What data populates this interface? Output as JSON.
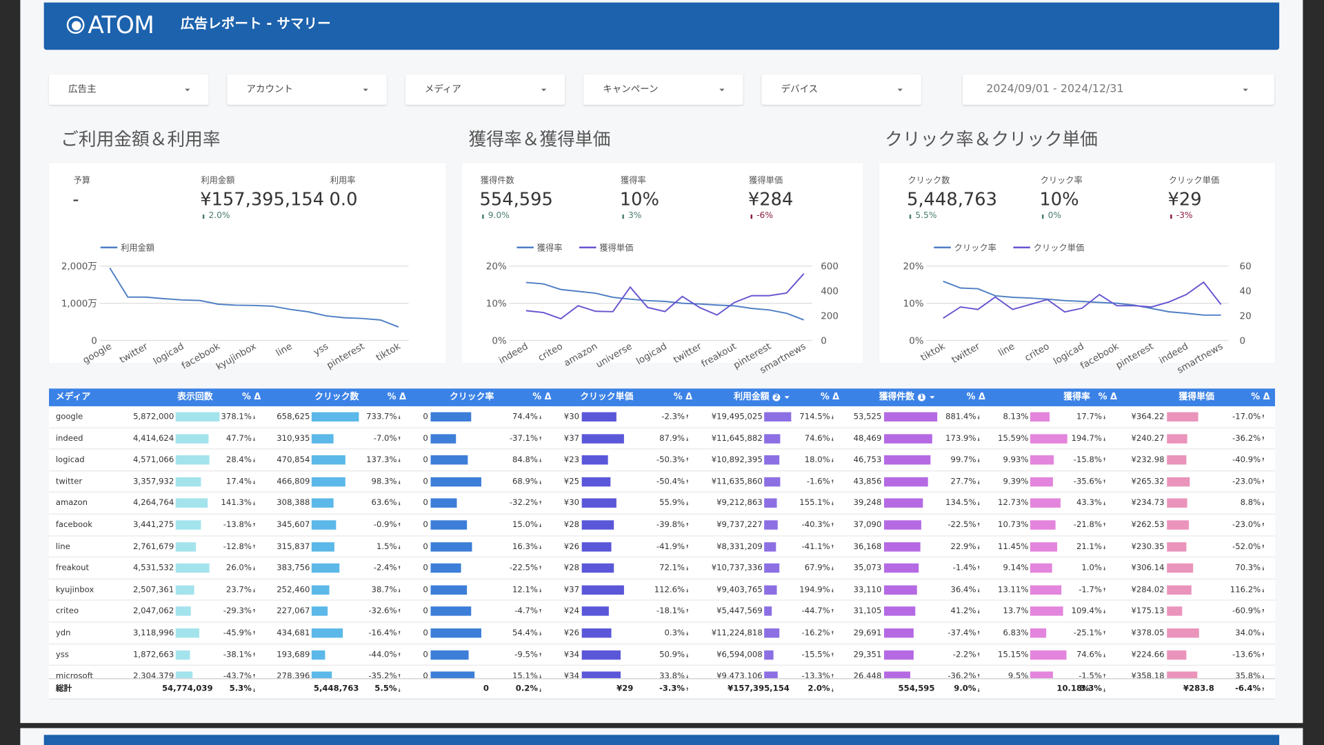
{
  "header": {
    "logo": "ATOM",
    "title": "広告レポート - サマリー"
  },
  "filters": [
    "広告主",
    "アカウント",
    "メディア",
    "キャンペーン",
    "デバイス"
  ],
  "date_range": "2024/09/01 - 2024/12/31",
  "panels": [
    {
      "title": "ご利用金額＆利用率",
      "kpis": [
        {
          "label": "予算",
          "value": "-"
        },
        {
          "label": "利用金額",
          "value": "¥157,395,154",
          "delta": "2.0%"
        },
        {
          "label": "利用率",
          "value": "0.0"
        }
      ]
    },
    {
      "title": "獲得率＆獲得単価",
      "kpis": [
        {
          "label": "獲得件数",
          "value": "554,595",
          "delta": "9.0%"
        },
        {
          "label": "獲得率",
          "value": "10%",
          "delta": "3%"
        },
        {
          "label": "獲得単価",
          "value": "¥284",
          "delta": "-6%"
        }
      ]
    },
    {
      "title": "クリック率＆クリック単価",
      "kpis": [
        {
          "label": "クリック数",
          "value": "5,448,763",
          "delta": "5.5%"
        },
        {
          "label": "クリック率",
          "value": "10%",
          "delta": "0%"
        },
        {
          "label": "クリック単価",
          "value": "¥29",
          "delta": "-3%"
        }
      ]
    }
  ],
  "chart_data": [
    {
      "type": "line",
      "categories": [
        "google",
        null,
        "twitter",
        null,
        "logicad",
        null,
        "facebook",
        null,
        "kyujinbox",
        null,
        "line",
        null,
        "yss",
        null,
        "pinterest",
        null,
        "tiktok"
      ],
      "series": [
        {
          "name": "利用金額",
          "color": "#4f7fc4",
          "values": [
            19500000,
            11650000,
            11640000,
            11220000,
            10890000,
            10740000,
            9740000,
            9470000,
            9400000,
            9210000,
            8330000,
            7700000,
            6590000,
            6100000,
            5900000,
            5500000,
            3600000
          ]
        }
      ],
      "ylim": [
        0,
        20000000
      ],
      "yticks": [
        0,
        {
          "value": 10000000,
          "label": "1,000万"
        },
        {
          "value": 20000000,
          "label": "2,000万"
        }
      ],
      "grid": true,
      "legend": "top-left"
    },
    {
      "type": "line",
      "categories": [
        "indeed",
        null,
        "criteo",
        null,
        "amazon",
        null,
        "universe",
        null,
        "logicad",
        null,
        "twitter",
        null,
        "freakout",
        null,
        "pinterest",
        null,
        "smartnews"
      ],
      "series": [
        {
          "name": "獲得率",
          "color": "#4f7fc4",
          "values": [
            15.6,
            15.2,
            13.7,
            13.2,
            12.7,
            11.6,
            11.1,
            10.7,
            10.5,
            10,
            9.8,
            9.5,
            9.3,
            8.6,
            8.2,
            7.3,
            5.5
          ]
        },
        {
          "name": "獲得単価",
          "color": "#6655d0",
          "axis": "y2",
          "values": [
            240,
            225,
            175,
            280,
            235,
            232,
            430,
            266,
            233,
            355,
            265,
            205,
            306,
            361,
            361,
            382,
            539
          ]
        }
      ],
      "ylim": [
        0,
        20
      ],
      "yticks": [
        {
          "value": 0,
          "label": "0%"
        },
        {
          "value": 10,
          "label": "10%"
        },
        {
          "value": 20,
          "label": "20%"
        }
      ],
      "y2lim": [
        0,
        600
      ],
      "y2ticks": [
        0,
        200,
        400,
        600
      ],
      "grid": true,
      "legend": "top-left"
    },
    {
      "type": "line",
      "categories": [
        "tiktok",
        null,
        "twitter",
        null,
        "line",
        null,
        "criteo",
        null,
        "logicad",
        null,
        "facebook",
        null,
        "pinterest",
        null,
        "indeed",
        null,
        "smartnews"
      ],
      "series": [
        {
          "name": "クリック率",
          "color": "#4f7fc4",
          "values": [
            15.9,
            14.1,
            13.9,
            12,
            11.6,
            11.4,
            11.1,
            10.7,
            10.5,
            10.2,
            10,
            9.5,
            8.6,
            7.7,
            7.3,
            6.8,
            6.8
          ]
        },
        {
          "name": "クリック単価",
          "color": "#6655d0",
          "axis": "y2",
          "values": [
            18,
            27,
            25,
            35,
            25,
            29,
            33,
            23,
            26,
            37,
            28,
            28,
            27,
            31,
            37,
            47,
            29
          ]
        }
      ],
      "ylim": [
        0,
        20
      ],
      "yticks": [
        {
          "value": 0,
          "label": "0%"
        },
        {
          "value": 10,
          "label": "10%"
        },
        {
          "value": 20,
          "label": "20%"
        }
      ],
      "y2lim": [
        0,
        60
      ],
      "y2ticks": [
        0,
        20,
        40,
        60
      ],
      "grid": true,
      "legend": "top-left"
    }
  ],
  "table": {
    "headers": [
      "メディア",
      "表示回数",
      "% Δ",
      "クリック数",
      "% Δ",
      "クリック率",
      "% Δ",
      "クリック単価",
      "% Δ",
      {
        "label": "利用金額",
        "sort": "2"
      },
      "% Δ",
      {
        "label": "獲得件数",
        "sort": "1"
      },
      "% Δ",
      "獲得率",
      "% Δ",
      "獲得単価",
      "% Δ"
    ],
    "rows": [
      [
        "google",
        "5,872,000",
        "378.1%",
        "658,625",
        "733.7%",
        "0",
        "74.4%",
        "¥30",
        "-2.3%",
        "¥19,495,025",
        "714.5%",
        "53,525",
        "881.4%",
        "8.13%",
        "17.7%",
        "¥364.22",
        "-17.0%"
      ],
      [
        "indeed",
        "4,414,624",
        "47.7%",
        "310,935",
        "-7.0%",
        "0",
        "-37.1%",
        "¥37",
        "87.9%",
        "¥11,645,882",
        "74.6%",
        "48,469",
        "173.9%",
        "15.59%",
        "194.7%",
        "¥240.27",
        "-36.2%"
      ],
      [
        "logicad",
        "4,571,066",
        "28.4%",
        "470,854",
        "137.3%",
        "0",
        "84.8%",
        "¥23",
        "-50.3%",
        "¥10,892,395",
        "18.0%",
        "46,753",
        "99.7%",
        "9.93%",
        "-15.8%",
        "¥232.98",
        "-40.9%"
      ],
      [
        "twitter",
        "3,357,932",
        "17.4%",
        "466,809",
        "98.3%",
        "0",
        "68.9%",
        "¥25",
        "-50.4%",
        "¥11,635,860",
        "-1.6%",
        "43,856",
        "27.7%",
        "9.39%",
        "-35.6%",
        "¥265.32",
        "-23.0%"
      ],
      [
        "amazon",
        "4,264,764",
        "141.3%",
        "308,388",
        "63.6%",
        "0",
        "-32.2%",
        "¥30",
        "55.9%",
        "¥9,212,863",
        "155.1%",
        "39,248",
        "134.5%",
        "12.73%",
        "43.3%",
        "¥234.73",
        "8.8%"
      ],
      [
        "facebook",
        "3,441,275",
        "-13.8%",
        "345,607",
        "-0.9%",
        "0",
        "15.0%",
        "¥28",
        "-39.8%",
        "¥9,737,227",
        "-40.3%",
        "37,090",
        "-22.5%",
        "10.73%",
        "-21.8%",
        "¥262.53",
        "-23.0%"
      ],
      [
        "line",
        "2,761,679",
        "-12.8%",
        "315,837",
        "1.5%",
        "0",
        "16.3%",
        "¥26",
        "-41.9%",
        "¥8,331,209",
        "-41.1%",
        "36,168",
        "22.9%",
        "11.45%",
        "21.1%",
        "¥230.35",
        "-52.0%"
      ],
      [
        "freakout",
        "4,531,532",
        "26.0%",
        "383,756",
        "-2.4%",
        "0",
        "-22.5%",
        "¥28",
        "72.1%",
        "¥10,737,336",
        "67.9%",
        "35,073",
        "-1.4%",
        "9.14%",
        "1.0%",
        "¥306.14",
        "70.3%"
      ],
      [
        "kyujinbox",
        "2,507,361",
        "23.7%",
        "252,460",
        "38.7%",
        "0",
        "12.1%",
        "¥37",
        "112.6%",
        "¥9,403,765",
        "194.9%",
        "33,110",
        "36.4%",
        "13.11%",
        "-1.7%",
        "¥284.02",
        "116.2%"
      ],
      [
        "criteo",
        "2,047,062",
        "-29.3%",
        "227,067",
        "-32.6%",
        "0",
        "-4.7%",
        "¥24",
        "-18.1%",
        "¥5,447,569",
        "-44.7%",
        "31,105",
        "41.2%",
        "13.7%",
        "109.4%",
        "¥175.13",
        "-60.9%"
      ],
      [
        "ydn",
        "3,118,996",
        "-45.9%",
        "434,681",
        "-16.4%",
        "0",
        "54.4%",
        "¥26",
        "0.3%",
        "¥11,224,818",
        "-16.2%",
        "29,691",
        "-37.4%",
        "6.83%",
        "-25.1%",
        "¥378.05",
        "34.0%"
      ],
      [
        "yss",
        "1,872,663",
        "-38.1%",
        "193,689",
        "-44.0%",
        "0",
        "-9.5%",
        "¥34",
        "50.9%",
        "¥6,594,008",
        "-15.5%",
        "29,351",
        "-2.2%",
        "15.15%",
        "74.6%",
        "¥224.66",
        "-13.6%"
      ],
      [
        "microsoft",
        "2,304,379",
        "-43.7%",
        "278,396",
        "-35.2%",
        "0",
        "15.1%",
        "¥34",
        "33.8%",
        "¥9,473,106",
        "-13.3%",
        "26,448",
        "-36.2%",
        "9.5%",
        "-1.5%",
        "¥358.18",
        "35.8%"
      ]
    ],
    "total": [
      "総計",
      "54,774,039",
      "5.3%",
      "5,448,763",
      "5.5%",
      "0",
      "0.2%",
      "¥29",
      "-3.3%",
      "¥157,395,154",
      "2.0%",
      "554,595",
      "9.0%",
      "10.18%",
      "3.3%",
      "¥283.8",
      "-6.4%"
    ]
  }
}
